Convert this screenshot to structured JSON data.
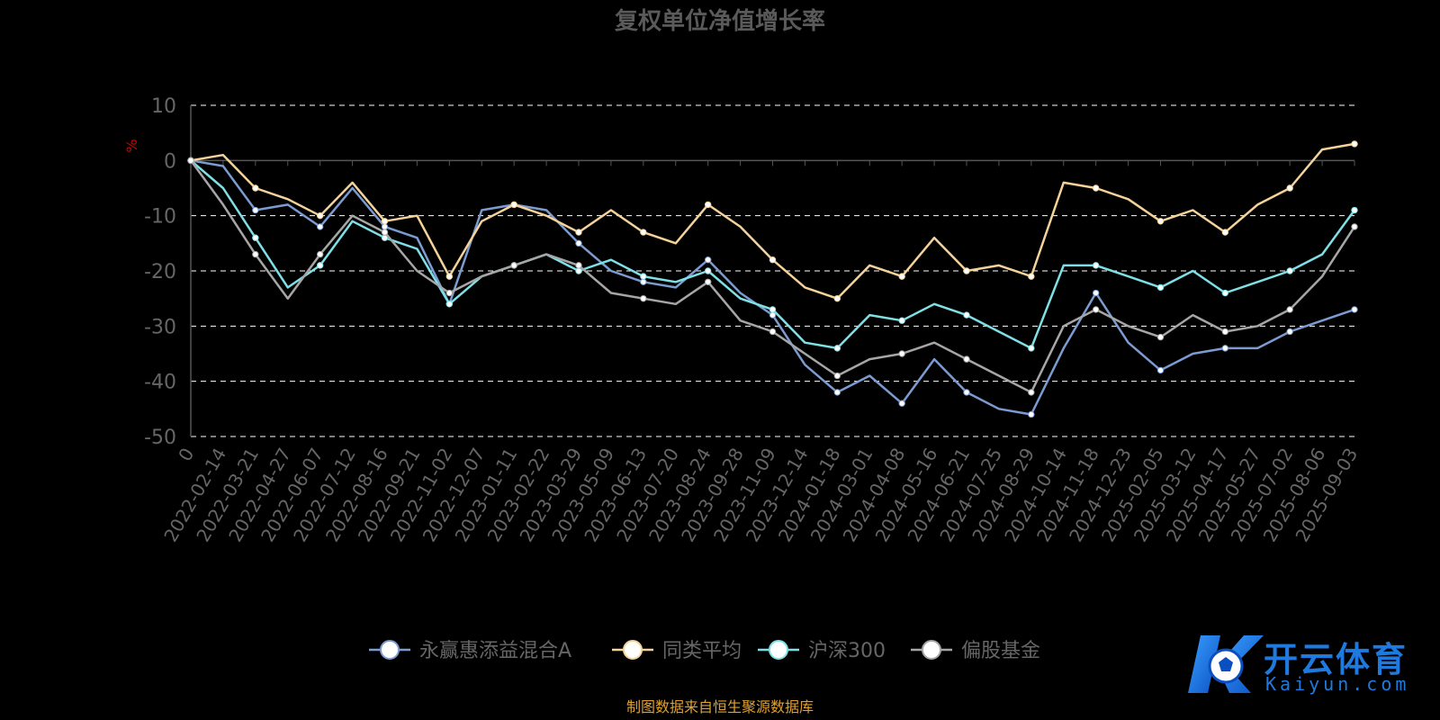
{
  "chart_data": {
    "type": "line",
    "title": "复权单位净值增长率",
    "ylabel": "%",
    "ylim": [
      -50,
      10
    ],
    "y_ticks": [
      10,
      0,
      -10,
      -20,
      -30,
      -40,
      -50
    ],
    "grid": true,
    "legend_position": "bottom",
    "categories": [
      "0",
      "2022-02-14",
      "2022-03-21",
      "2022-04-27",
      "2022-06-07",
      "2022-07-12",
      "2022-08-16",
      "2022-09-21",
      "2022-11-02",
      "2022-12-07",
      "2023-01-11",
      "2023-02-22",
      "2023-03-29",
      "2023-05-09",
      "2023-06-13",
      "2023-07-20",
      "2023-08-24",
      "2023-09-28",
      "2023-11-09",
      "2023-12-14",
      "2024-01-18",
      "2024-03-01",
      "2024-04-08",
      "2024-05-16",
      "2024-06-21",
      "2024-07-25",
      "2024-08-29",
      "2024-10-14",
      "2024-11-18",
      "2024-12-23",
      "2025-02-05",
      "2025-03-12",
      "2025-04-17",
      "2025-05-27",
      "2025-07-02",
      "2025-08-06",
      "2025-09-03"
    ],
    "series": [
      {
        "name": "永赢惠添益混合A",
        "color": "#7b9bd1",
        "values": [
          0,
          -1,
          -9,
          -8,
          -12,
          -5,
          -12,
          -14,
          -26,
          -9,
          -8,
          -9,
          -15,
          -20,
          -22,
          -23,
          -18,
          -24,
          -28,
          -37,
          -42,
          -39,
          -44,
          -36,
          -42,
          -45,
          -46,
          -34,
          -24,
          -33,
          -38,
          -35,
          -34,
          -34,
          -31,
          -29,
          -27
        ]
      },
      {
        "name": "同类平均",
        "color": "#f5d29a",
        "values": [
          0,
          1,
          -5,
          -7,
          -10,
          -4,
          -11,
          -10,
          -21,
          -11,
          -8,
          -10,
          -13,
          -9,
          -13,
          -15,
          -8,
          -12,
          -18,
          -23,
          -25,
          -19,
          -21,
          -14,
          -20,
          -19,
          -21,
          -4,
          -5,
          -7,
          -11,
          -9,
          -13,
          -8,
          -5,
          2,
          3
        ]
      },
      {
        "name": "沪深300",
        "color": "#7ee0e6",
        "values": [
          0,
          -5,
          -14,
          -23,
          -19,
          -11,
          -14,
          -16,
          -26,
          -21,
          -19,
          -17,
          -20,
          -18,
          -21,
          -22,
          -20,
          -25,
          -27,
          -33,
          -34,
          -28,
          -29,
          -26,
          -28,
          -31,
          -34,
          -19,
          -19,
          -21,
          -23,
          -20,
          -24,
          -22,
          -20,
          -17,
          -9
        ]
      },
      {
        "name": "偏股基金",
        "color": "#a6a6a6",
        "values": [
          0,
          -8,
          -17,
          -25,
          -17,
          -10,
          -13,
          -20,
          -24,
          -21,
          -19,
          -17,
          -19,
          -24,
          -25,
          -26,
          -22,
          -29,
          -31,
          -35,
          -39,
          -36,
          -35,
          -33,
          -36,
          -39,
          -42,
          -30,
          -27,
          -30,
          -32,
          -28,
          -31,
          -30,
          -27,
          -21,
          -12
        ]
      }
    ]
  },
  "legend_marker_color": "#ffffff",
  "source_note": "制图数据来自恒生聚源数据库",
  "watermark": {
    "brand": "开云体育",
    "url": "Kaiyun.com"
  },
  "colors": {
    "title": "#5a5a5a",
    "tick": "#666666",
    "grid": "#ffffff",
    "axis": "#555555",
    "ylabel": "#cc0000",
    "note": "#e0a030",
    "brand": "#1f7ae0"
  }
}
